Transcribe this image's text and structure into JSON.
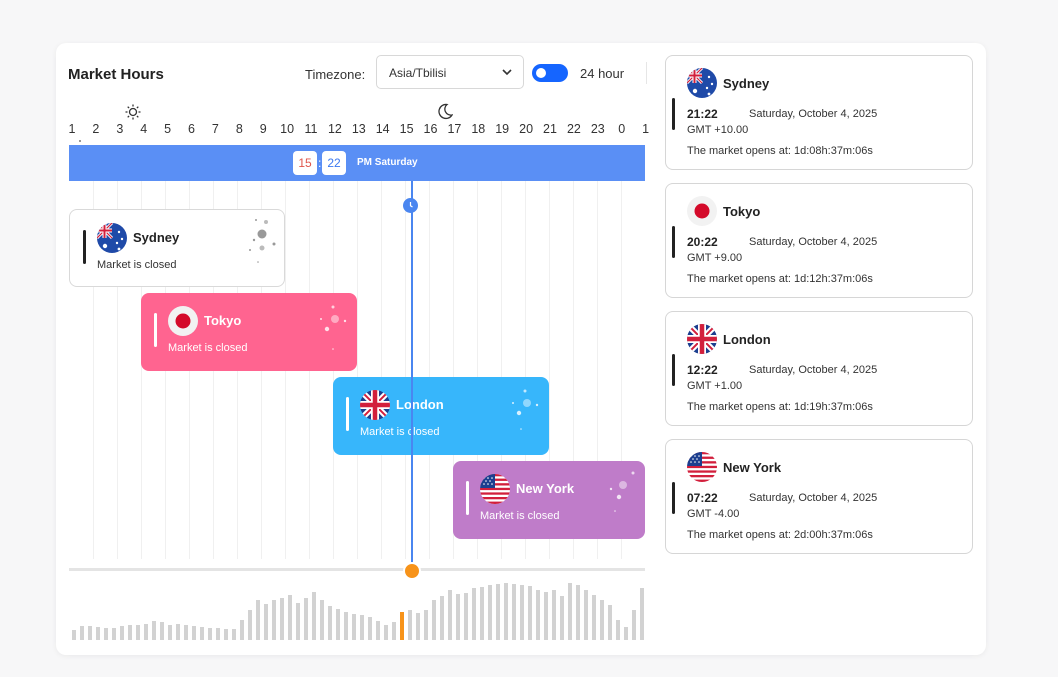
{
  "header": {
    "title": "Market Hours",
    "timezone_label": "Timezone:",
    "timezone_value": "Asia/Tbilisi",
    "hour_format_label": "24 hour",
    "hour_format_on": true
  },
  "timeline": {
    "hours": [
      "1",
      "2",
      "3",
      "4",
      "5",
      "6",
      "7",
      "8",
      "9",
      "10",
      "11",
      "12",
      "13",
      "14",
      "15",
      "16",
      "17",
      "18",
      "19",
      "20",
      "21",
      "22",
      "23",
      "0",
      "1"
    ],
    "current_hour": "15",
    "current_minute": "22",
    "period_label": "PM Saturday",
    "colors": {
      "bar": "#5a8ff5",
      "now_line": "#4a86f0",
      "slider_knob": "#f7931a"
    }
  },
  "markets": [
    {
      "name": "Sydney",
      "status": "Market is closed",
      "color": "#ffffff",
      "flag": "australia-flag-icon"
    },
    {
      "name": "Tokyo",
      "status": "Market is closed",
      "color": "#ff6490",
      "flag": "japan-flag-icon"
    },
    {
      "name": "London",
      "status": "Market is closed",
      "color": "#37b6fb",
      "flag": "uk-flag-icon"
    },
    {
      "name": "New York",
      "status": "Market is closed",
      "color": "#bf7cc9",
      "flag": "usa-flag-icon"
    }
  ],
  "volume": {
    "values": [
      10,
      14,
      14,
      13,
      12,
      12,
      14,
      15,
      15,
      16,
      19,
      18,
      15,
      16,
      15,
      14,
      13,
      12,
      12,
      11,
      11,
      20,
      30,
      40,
      36,
      40,
      42,
      45,
      37,
      42,
      48,
      40,
      34,
      31,
      28,
      26,
      25,
      23,
      19,
      15,
      18,
      28,
      30,
      27,
      30,
      40,
      44,
      50,
      46,
      47,
      52,
      53,
      55,
      56,
      57,
      56,
      55,
      54,
      50,
      48,
      50,
      44,
      57,
      55,
      50,
      45,
      40,
      35,
      20,
      13,
      30,
      52
    ],
    "highlight_index": 41,
    "highlight_color": "#f7931a"
  },
  "sidebar": [
    {
      "city": "Sydney",
      "time": "21:22",
      "date": "Saturday, October 4, 2025",
      "gmt": "GMT +10.00",
      "opens": "The market opens at: 1d:08h:37m:06s",
      "flag": "australia-flag-icon"
    },
    {
      "city": "Tokyo",
      "time": "20:22",
      "date": "Saturday, October 4, 2025",
      "gmt": "GMT +9.00",
      "opens": "The market opens at: 1d:12h:37m:06s",
      "flag": "japan-flag-icon"
    },
    {
      "city": "London",
      "time": "12:22",
      "date": "Saturday, October 4, 2025",
      "gmt": "GMT +1.00",
      "opens": "The market opens at: 1d:19h:37m:06s",
      "flag": "uk-flag-icon"
    },
    {
      "city": "New York",
      "time": "07:22",
      "date": "Saturday, October 4, 2025",
      "gmt": "GMT -4.00",
      "opens": "The market opens at: 2d:00h:37m:06s",
      "flag": "usa-flag-icon"
    }
  ]
}
